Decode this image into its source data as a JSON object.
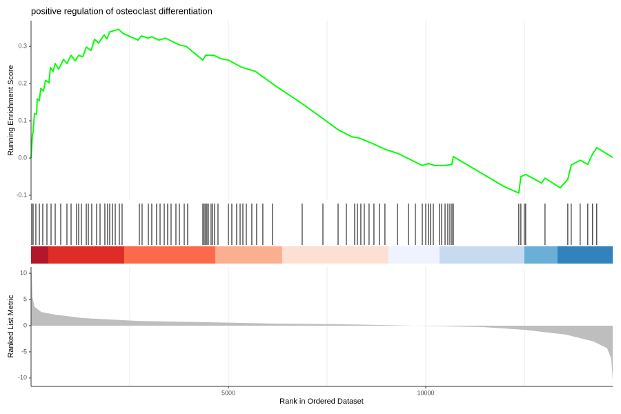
{
  "chart_data": [
    {
      "type": "line",
      "title": "positive regulation of osteoclast differentiation",
      "y_label": "Running Enrichment Score",
      "color": "#00ff00",
      "xlim": [
        0,
        14738
      ],
      "ylim": [
        -0.113,
        0.369
      ],
      "yticks": [
        -0.1,
        {
          "value": 0,
          "label": "0.0"
        },
        0.1,
        0.2,
        0.3
      ],
      "xgrid": [
        2500,
        5000,
        7500,
        10000,
        12500
      ],
      "x": [
        0,
        35,
        52,
        87,
        140,
        157,
        210,
        245,
        315,
        367,
        454,
        489,
        559,
        612,
        699,
        822,
        909,
        1014,
        1119,
        1206,
        1311,
        1399,
        1521,
        1608,
        1713,
        1853,
        1923,
        1993,
        2220,
        2325,
        2709,
        2797,
        2972,
        3059,
        3234,
        3409,
        3758,
        3933,
        4353,
        4422,
        4632,
        4807,
        5000,
        5332,
        5682,
        6206,
        6870,
        7395,
        7780,
        8129,
        8304,
        8654,
        9003,
        9283,
        9703,
        9913,
        10070,
        10227,
        10490,
        10664,
        10699,
        11974,
        12358,
        12411,
        12533,
        12935,
        13023,
        13407,
        13600,
        13687,
        13914,
        14106,
        14228,
        14333,
        14735
      ],
      "values": [
        0,
        0.063,
        0.069,
        0.119,
        0.117,
        0.159,
        0.154,
        0.187,
        0.18,
        0.209,
        0.202,
        0.243,
        0.233,
        0.254,
        0.239,
        0.265,
        0.254,
        0.276,
        0.261,
        0.276,
        0.272,
        0.298,
        0.289,
        0.319,
        0.309,
        0.331,
        0.32,
        0.339,
        0.346,
        0.335,
        0.317,
        0.328,
        0.322,
        0.326,
        0.317,
        0.322,
        0.304,
        0.3,
        0.263,
        0.276,
        0.276,
        0.267,
        0.263,
        0.244,
        0.233,
        0.193,
        0.146,
        0.106,
        0.076,
        0.057,
        0.054,
        0.039,
        0.022,
        0.013,
        -0.009,
        -0.02,
        -0.015,
        -0.02,
        -0.02,
        -0.017,
        0.004,
        -0.076,
        -0.094,
        -0.05,
        -0.044,
        -0.067,
        -0.054,
        -0.08,
        -0.057,
        -0.019,
        -0.006,
        -0.017,
        0.011,
        0.028,
        0.002
      ]
    },
    {
      "type": "rug",
      "xlim": [
        0,
        14738
      ],
      "hit_color": "#000000",
      "hits": [
        17,
        52,
        122,
        210,
        297,
        402,
        507,
        612,
        752,
        909,
        1014,
        1154,
        1206,
        1276,
        1399,
        1451,
        1538,
        1661,
        1748,
        1870,
        1940,
        1993,
        2063,
        2133,
        2237,
        2307,
        2744,
        2814,
        2972,
        3059,
        3181,
        3269,
        3374,
        3461,
        3548,
        3671,
        3758,
        3881,
        3968,
        4353,
        4387,
        4422,
        4457,
        4492,
        4562,
        4597,
        4650,
        4737,
        5000,
        5087,
        5209,
        5297,
        5367,
        5454,
        5594,
        5716,
        5873,
        6118,
        6870,
        7395,
        7780,
        7989,
        8199,
        8269,
        8356,
        8443,
        8565,
        8688,
        8827,
        8967,
        9283,
        9563,
        9737,
        9913,
        10000,
        10070,
        10122,
        10192,
        10350,
        10402,
        10490,
        10559,
        10612,
        10664,
        10699,
        12358,
        12411,
        12498,
        12533,
        13023,
        13600,
        13687,
        13914,
        14106,
        14228,
        14333
      ],
      "color_bar": [
        {
          "start": 0,
          "end": 437,
          "color": "#b2182b"
        },
        {
          "start": 437,
          "end": 2360,
          "color": "#de2d26"
        },
        {
          "start": 2360,
          "end": 4667,
          "color": "#fb6a4a"
        },
        {
          "start": 4667,
          "end": 6363,
          "color": "#fcae91"
        },
        {
          "start": 6363,
          "end": 9055,
          "color": "#fee0d2"
        },
        {
          "start": 9055,
          "end": 10349,
          "color": "#eff3ff"
        },
        {
          "start": 10349,
          "end": 12498,
          "color": "#c6dbef"
        },
        {
          "start": 12498,
          "end": 13337,
          "color": "#6baed6"
        },
        {
          "start": 13337,
          "end": 14738,
          "color": "#3182bd"
        }
      ]
    },
    {
      "type": "area",
      "x_label": "Rank in Ordered Dataset",
      "y_label": "Ranked List Metric",
      "color": "#bebebe",
      "xlim": [
        0,
        14738
      ],
      "ylim": [
        -11.6,
        11.2
      ],
      "xticks": [
        5000,
        10000
      ],
      "yticks": [
        -10,
        -5,
        0,
        5,
        10
      ],
      "xgrid": [
        2500,
        5000,
        7500,
        10000,
        12500
      ],
      "x": [
        0,
        17,
        35,
        87,
        262,
        612,
        1311,
        2709,
        4457,
        6206,
        7954,
        9703,
        11450,
        12498,
        13547,
        14246,
        14595,
        14700,
        14738
      ],
      "values": [
        10.5,
        10,
        5.5,
        3.6,
        2.6,
        2.1,
        1.45,
        0.9,
        0.66,
        0.4,
        0.26,
        0,
        -0.26,
        -0.8,
        -1.7,
        -3,
        -4.3,
        -6.3,
        -10.3
      ]
    }
  ]
}
